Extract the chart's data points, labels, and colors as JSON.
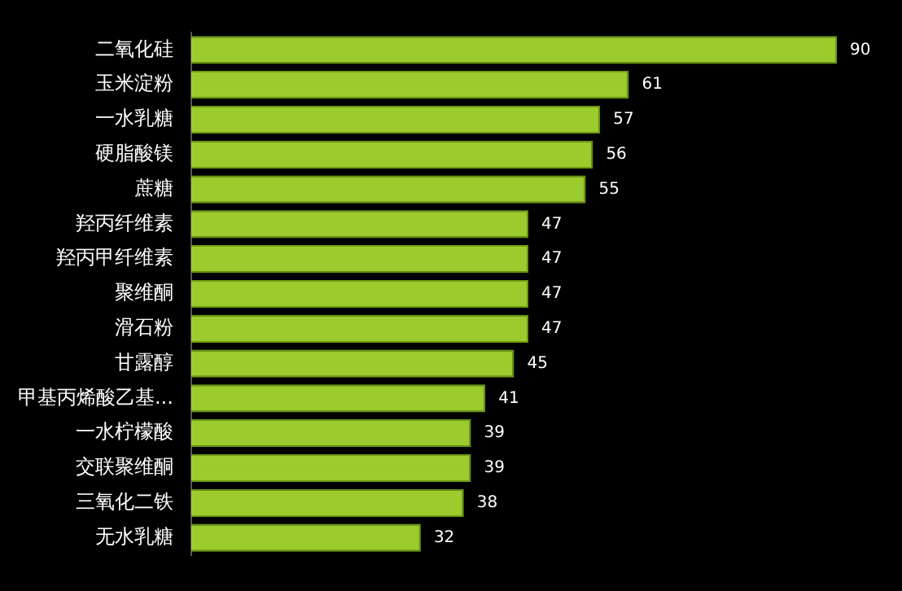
{
  "chart_data": {
    "type": "bar",
    "orientation": "horizontal",
    "categories": [
      "二氧化硅",
      "玉米淀粉",
      "一水乳糖",
      "硬脂酸镁",
      "蔗糖",
      "羟丙纤维素",
      "羟丙甲纤维素",
      "聚维酮",
      "滑石粉",
      "甘露醇",
      "甲基丙烯酸乙基...",
      "一水柠檬酸",
      "交联聚维酮",
      "三氧化二铁",
      "无水乳糖"
    ],
    "values": [
      90,
      61,
      57,
      56,
      55,
      47,
      47,
      47,
      47,
      45,
      41,
      39,
      39,
      38,
      32
    ],
    "color": "#9ccb2e",
    "data_labels": true,
    "legend": false,
    "tick_labels": "y"
  }
}
